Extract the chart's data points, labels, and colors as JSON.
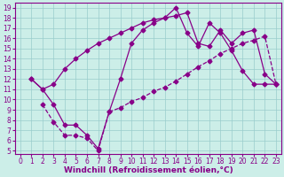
{
  "xlabel": "Windchill (Refroidissement éolien,°C)",
  "bg_color": "#cceee8",
  "line_color": "#880088",
  "xlim": [
    -0.5,
    23.5
  ],
  "ylim": [
    4.7,
    19.5
  ],
  "xticks": [
    0,
    1,
    2,
    3,
    4,
    5,
    6,
    7,
    8,
    9,
    10,
    11,
    12,
    13,
    14,
    15,
    16,
    17,
    18,
    19,
    20,
    21,
    22,
    23
  ],
  "yticks": [
    5,
    6,
    7,
    8,
    9,
    10,
    11,
    12,
    13,
    14,
    15,
    16,
    17,
    18,
    19
  ],
  "line1_x": [
    1,
    2,
    3,
    4,
    5,
    6,
    7,
    8,
    9,
    10,
    11,
    12,
    13,
    14,
    15,
    16,
    17,
    18,
    19,
    20,
    21,
    22,
    23
  ],
  "line1_y": [
    12.0,
    11.0,
    11.5,
    13.0,
    14.0,
    14.8,
    15.5,
    16.0,
    16.5,
    17.0,
    17.5,
    17.8,
    18.0,
    18.2,
    18.5,
    15.5,
    15.2,
    16.8,
    15.5,
    16.5,
    16.8,
    12.5,
    11.5
  ],
  "line2_x": [
    1,
    2,
    3,
    4,
    5,
    6,
    7,
    8,
    9,
    10,
    11,
    12,
    13,
    14,
    15,
    16,
    17,
    18,
    19,
    20,
    21,
    22,
    23
  ],
  "line2_y": [
    12.0,
    11.0,
    9.5,
    7.5,
    7.5,
    6.5,
    5.2,
    8.8,
    12.0,
    15.5,
    16.8,
    17.5,
    18.0,
    19.0,
    16.5,
    15.2,
    17.5,
    16.5,
    14.8,
    12.8,
    11.5,
    11.5,
    11.5
  ],
  "line3_x": [
    2,
    3,
    4,
    5,
    6,
    7,
    8,
    9,
    10,
    11,
    12,
    13,
    14,
    15,
    16,
    17,
    18,
    19,
    20,
    21,
    22,
    23
  ],
  "line3_y": [
    9.5,
    7.8,
    6.5,
    6.5,
    6.2,
    5.0,
    8.8,
    9.2,
    9.8,
    10.2,
    10.8,
    11.2,
    11.8,
    12.5,
    13.2,
    13.8,
    14.5,
    15.0,
    15.5,
    15.8,
    16.2,
    11.5
  ],
  "grid_color": "#99cccc",
  "marker": "D",
  "marker_size": 2.5,
  "linewidth": 0.9,
  "xlabel_fontsize": 6.5,
  "tick_fontsize": 5.5
}
